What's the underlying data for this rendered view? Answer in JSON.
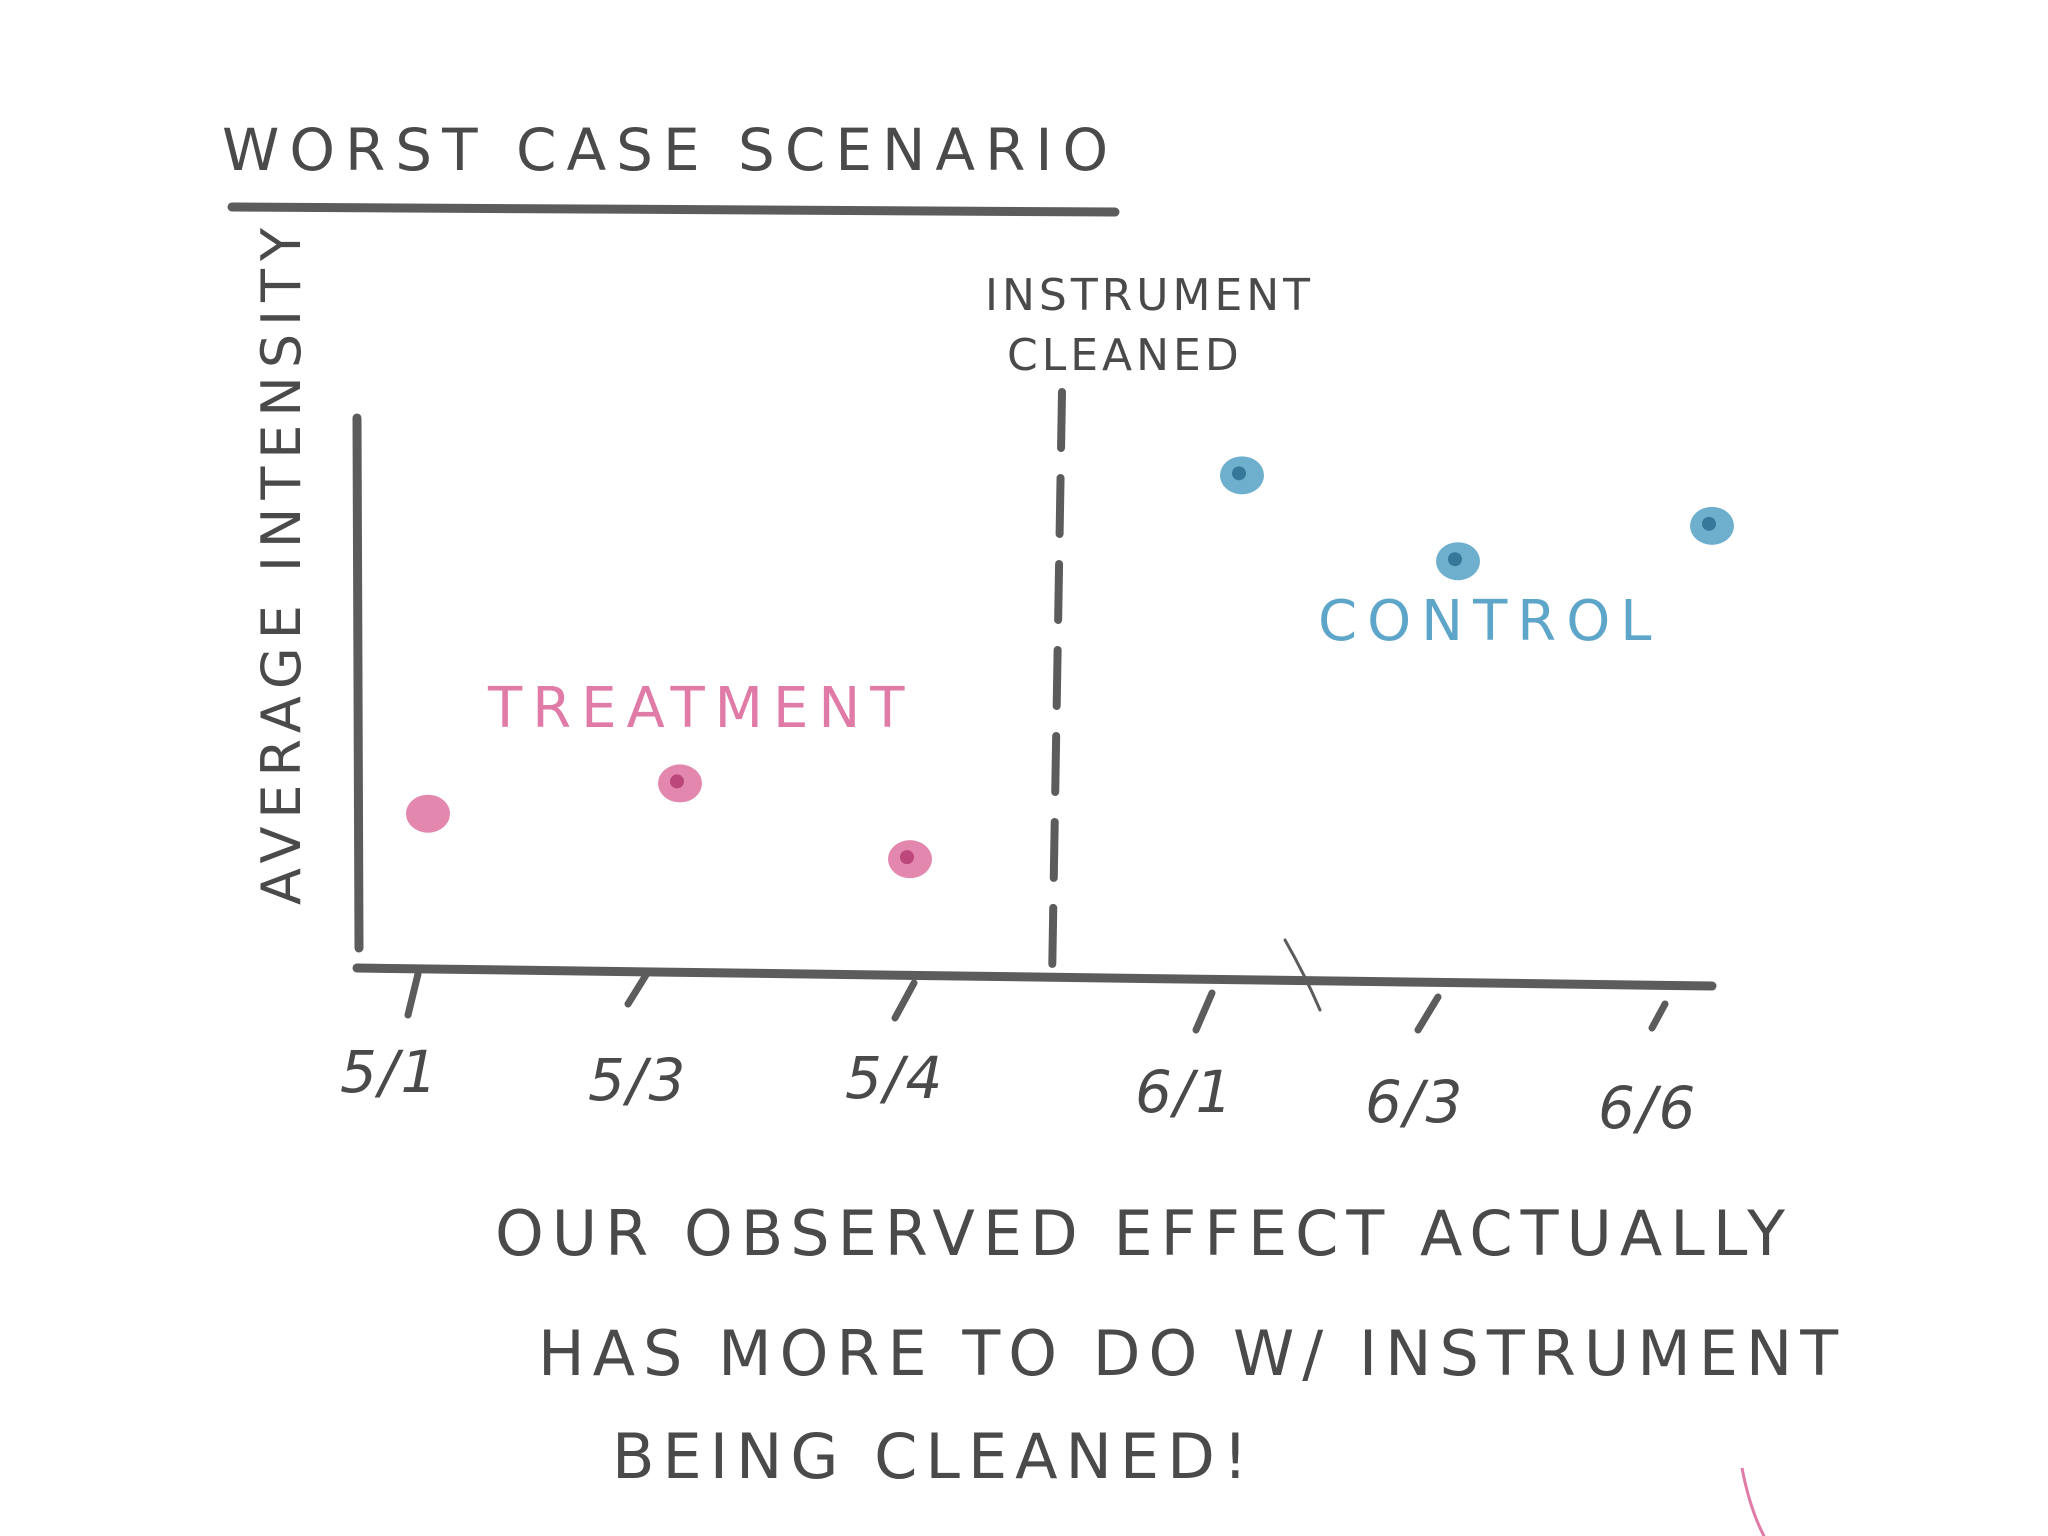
{
  "chart_data": {
    "type": "scatter",
    "title": "WORST CASE SCENARIO",
    "ylabel": "AVERAGE INTENSITY",
    "xlabel": "",
    "x_ticks": [
      "5/1",
      "5/3",
      "5/4",
      "6/1",
      "6/3",
      "6/6"
    ],
    "annotation": {
      "text_lines": [
        "INSTRUMENT",
        "CLEANED"
      ],
      "line_style": "dashed",
      "position_between": [
        "5/4",
        "6/1"
      ]
    },
    "ylim": [
      0,
      1
    ],
    "grid": false,
    "series": [
      {
        "name": "TREATMENT",
        "color": "#e07aa6",
        "points": [
          {
            "x": "5/1",
            "y": 0.26
          },
          {
            "x": "5/3",
            "y": 0.32
          },
          {
            "x": "5/4",
            "y": 0.17
          }
        ]
      },
      {
        "name": "CONTROL",
        "color": "#5ea6c9",
        "points": [
          {
            "x": "6/1",
            "y": 0.93
          },
          {
            "x": "6/3",
            "y": 0.76
          },
          {
            "x": "6/6",
            "y": 0.83
          }
        ]
      }
    ],
    "caption_lines": [
      "OUR OBSERVED EFFECT ACTUALLY",
      "HAS MORE TO DO W/ INSTRUMENT",
      "BEING CLEANED!"
    ]
  }
}
